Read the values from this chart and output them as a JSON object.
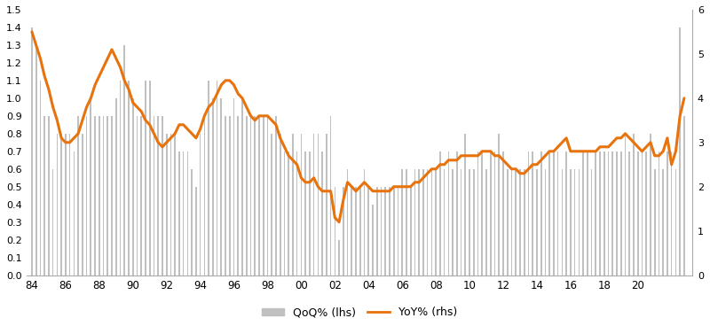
{
  "bar_color": "#c0c0c0",
  "line_color": "#e8720c",
  "lhs_ylim": [
    0.0,
    1.5
  ],
  "rhs_ylim": [
    0,
    6
  ],
  "lhs_yticks": [
    0.0,
    0.1,
    0.2,
    0.3,
    0.4,
    0.5,
    0.6,
    0.7,
    0.8,
    0.9,
    1.0,
    1.1,
    1.2,
    1.3,
    1.4,
    1.5
  ],
  "rhs_yticks": [
    0,
    1,
    2,
    3,
    4,
    5,
    6
  ],
  "legend_bar_label": "QoQ% (lhs)",
  "legend_line_label": "YoY% (rhs)",
  "qoq_data": [
    1.4,
    1.3,
    1.1,
    0.9,
    0.9,
    0.6,
    0.8,
    0.8,
    0.8,
    0.8,
    0.7,
    0.9,
    0.8,
    0.9,
    1.0,
    0.9,
    0.9,
    0.9,
    0.9,
    0.9,
    1.0,
    1.1,
    1.3,
    1.1,
    1.0,
    0.9,
    0.9,
    1.1,
    1.1,
    0.9,
    0.9,
    0.9,
    0.8,
    0.8,
    0.8,
    0.7,
    0.7,
    0.7,
    0.6,
    0.5,
    0.8,
    0.9,
    1.1,
    1.0,
    1.1,
    1.0,
    0.9,
    0.9,
    1.0,
    0.9,
    1.0,
    0.9,
    0.9,
    0.9,
    0.9,
    0.9,
    0.9,
    0.8,
    0.9,
    0.8,
    0.7,
    0.7,
    0.8,
    0.7,
    0.8,
    0.7,
    0.7,
    0.8,
    0.8,
    0.7,
    0.8,
    0.9,
    0.5,
    0.2,
    0.5,
    0.6,
    0.5,
    0.5,
    0.5,
    0.6,
    0.5,
    0.4,
    0.5,
    0.5,
    0.5,
    0.5,
    0.5,
    0.5,
    0.6,
    0.6,
    0.5,
    0.6,
    0.6,
    0.6,
    0.6,
    0.6,
    0.6,
    0.7,
    0.6,
    0.7,
    0.6,
    0.7,
    0.6,
    0.8,
    0.6,
    0.6,
    0.7,
    0.7,
    0.6,
    0.7,
    0.7,
    0.8,
    0.7,
    0.6,
    0.6,
    0.6,
    0.6,
    0.6,
    0.7,
    0.7,
    0.6,
    0.7,
    0.6,
    0.7,
    0.7,
    0.7,
    0.6,
    0.7,
    0.6,
    0.6,
    0.6,
    0.7,
    0.7,
    0.6,
    0.7,
    0.7,
    0.7,
    0.7,
    0.7,
    0.7,
    0.7,
    0.8,
    0.7,
    0.8,
    0.7,
    0.7,
    0.7,
    0.8,
    0.6,
    0.7,
    0.6,
    0.7,
    0.7,
    0.6,
    1.4,
    0.9
  ],
  "yoy_data": [
    5.5,
    5.2,
    4.9,
    4.5,
    4.2,
    3.8,
    3.5,
    3.1,
    3.0,
    3.0,
    3.1,
    3.2,
    3.5,
    3.8,
    4.0,
    4.3,
    4.5,
    4.7,
    4.9,
    5.1,
    4.9,
    4.7,
    4.4,
    4.2,
    3.9,
    3.8,
    3.7,
    3.5,
    3.4,
    3.2,
    3.0,
    2.9,
    3.0,
    3.1,
    3.2,
    3.4,
    3.4,
    3.3,
    3.2,
    3.1,
    3.3,
    3.6,
    3.8,
    3.9,
    4.1,
    4.3,
    4.4,
    4.4,
    4.3,
    4.1,
    4.0,
    3.8,
    3.6,
    3.5,
    3.6,
    3.6,
    3.6,
    3.5,
    3.4,
    3.1,
    2.9,
    2.7,
    2.6,
    2.5,
    2.2,
    2.1,
    2.1,
    2.2,
    2.0,
    1.9,
    1.9,
    1.9,
    1.3,
    1.2,
    1.7,
    2.1,
    2.0,
    1.9,
    2.0,
    2.1,
    2.0,
    1.9,
    1.9,
    1.9,
    1.9,
    1.9,
    2.0,
    2.0,
    2.0,
    2.0,
    2.0,
    2.1,
    2.1,
    2.2,
    2.3,
    2.4,
    2.4,
    2.5,
    2.5,
    2.6,
    2.6,
    2.6,
    2.7,
    2.7,
    2.7,
    2.7,
    2.7,
    2.8,
    2.8,
    2.8,
    2.7,
    2.7,
    2.6,
    2.5,
    2.4,
    2.4,
    2.3,
    2.3,
    2.4,
    2.5,
    2.5,
    2.6,
    2.7,
    2.8,
    2.8,
    2.9,
    3.0,
    3.1,
    2.8,
    2.8,
    2.8,
    2.8,
    2.8,
    2.8,
    2.8,
    2.9,
    2.9,
    2.9,
    3.0,
    3.1,
    3.1,
    3.2,
    3.1,
    3.0,
    2.9,
    2.8,
    2.9,
    3.0,
    2.7,
    2.7,
    2.8,
    3.1,
    2.5,
    2.8,
    3.6,
    4.0
  ]
}
